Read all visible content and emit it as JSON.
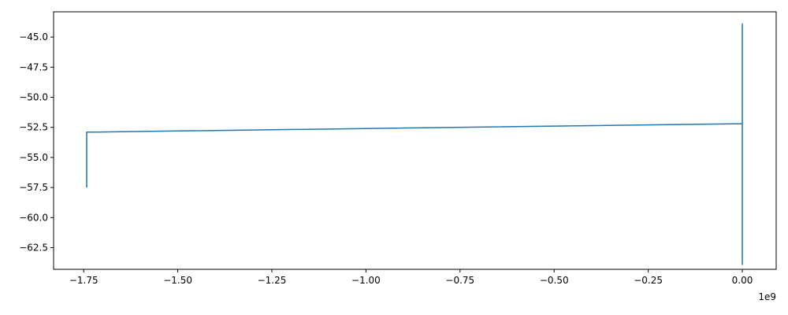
{
  "chart_data": {
    "type": "line",
    "title": "",
    "xlabel": "",
    "ylabel": "",
    "x_offset_label": "1e9",
    "xlim": [
      -1.83,
      0.09
    ],
    "ylim": [
      -64.3,
      -42.9
    ],
    "grid": false,
    "legend": "none",
    "x_ticks": [
      {
        "value": -1.75,
        "label": "−1.75"
      },
      {
        "value": -1.5,
        "label": "−1.50"
      },
      {
        "value": -1.25,
        "label": "−1.25"
      },
      {
        "value": -1.0,
        "label": "−1.00"
      },
      {
        "value": -0.75,
        "label": "−0.75"
      },
      {
        "value": -0.5,
        "label": "−0.50"
      },
      {
        "value": -0.25,
        "label": "−0.25"
      },
      {
        "value": 0.0,
        "label": "0.00"
      }
    ],
    "y_ticks": [
      {
        "value": -45.0,
        "label": "−45.0"
      },
      {
        "value": -47.5,
        "label": "−47.5"
      },
      {
        "value": -50.0,
        "label": "−50.0"
      },
      {
        "value": -52.5,
        "label": "−52.5"
      },
      {
        "value": -55.0,
        "label": "−55.0"
      },
      {
        "value": -57.5,
        "label": "−57.5"
      },
      {
        "value": -60.0,
        "label": "−60.0"
      },
      {
        "value": -62.5,
        "label": "−62.5"
      }
    ],
    "series": [
      {
        "color": "#1f77b4",
        "x": [
          -1.742,
          -1.742,
          0.0,
          0.0,
          0.0,
          0.0,
          0.0,
          0.0,
          0.0
        ],
        "y": [
          -57.5,
          -52.9,
          -52.2,
          -43.9,
          -60.5,
          -47.0,
          -63.9,
          -52.0,
          -58.0
        ]
      }
    ]
  }
}
